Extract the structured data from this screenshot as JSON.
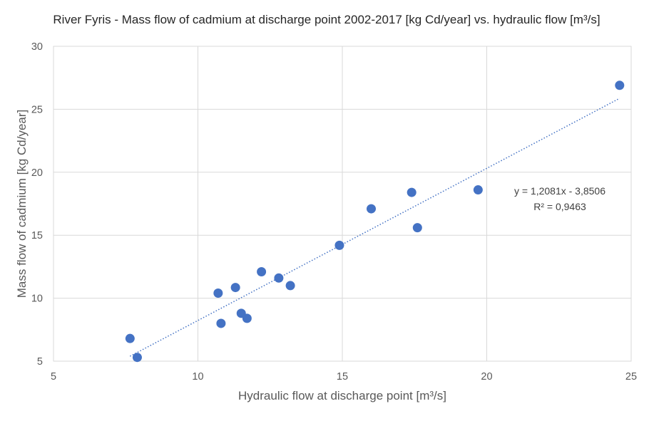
{
  "chart_data": {
    "type": "scatter",
    "title": "River Fyris - Mass flow of cadmium at discharge point 2002-2017 [kg Cd/year] vs. hydraulic flow [m³/s]",
    "xlabel": "Hydraulic flow at discharge point [m³/s]",
    "ylabel": "Mass flow of cadmium [kg Cd/year]",
    "xlim": [
      5,
      25
    ],
    "ylim": [
      5,
      30
    ],
    "xticks": [
      5,
      10,
      15,
      20,
      25
    ],
    "yticks": [
      5,
      10,
      15,
      20,
      25,
      30
    ],
    "grid": true,
    "point_color": "#4472c4",
    "trendline": {
      "type": "linear",
      "slope": 1.2081,
      "intercept": -3.8506,
      "x_range": [
        7.65,
        24.6
      ],
      "equation": "y = 1,2081x - 3,8506",
      "r_squared": "R² = 0,9463",
      "color": "#4472c4"
    },
    "series": [
      {
        "points": [
          {
            "x": 7.65,
            "y": 6.8
          },
          {
            "x": 7.9,
            "y": 5.3
          },
          {
            "x": 10.7,
            "y": 10.4
          },
          {
            "x": 10.8,
            "y": 8.0
          },
          {
            "x": 11.3,
            "y": 10.85
          },
          {
            "x": 11.5,
            "y": 8.8
          },
          {
            "x": 11.7,
            "y": 8.4
          },
          {
            "x": 12.2,
            "y": 12.1
          },
          {
            "x": 12.8,
            "y": 11.6
          },
          {
            "x": 13.2,
            "y": 11.0
          },
          {
            "x": 14.9,
            "y": 14.2
          },
          {
            "x": 16.0,
            "y": 17.1
          },
          {
            "x": 17.4,
            "y": 18.4
          },
          {
            "x": 17.6,
            "y": 15.6
          },
          {
            "x": 19.7,
            "y": 18.6
          },
          {
            "x": 24.6,
            "y": 26.9
          }
        ]
      }
    ]
  }
}
